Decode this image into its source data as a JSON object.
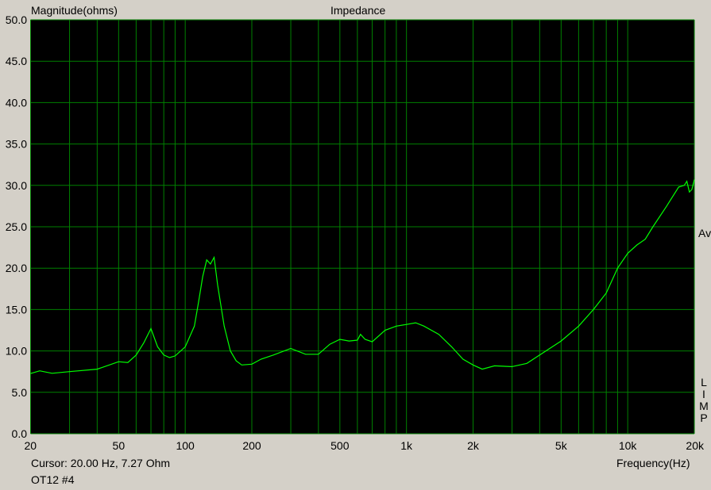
{
  "chart_data": {
    "type": "line",
    "title": "Impedance",
    "ylabel": "Magnitude(ohms)",
    "xlabel": "Frequency(Hz)",
    "xscale": "log",
    "xlim": [
      20,
      20000
    ],
    "ylim": [
      0,
      50
    ],
    "grid": true,
    "x_ticks": [
      {
        "v": 20,
        "label": "20"
      },
      {
        "v": 50,
        "label": "50"
      },
      {
        "v": 100,
        "label": "100"
      },
      {
        "v": 200,
        "label": "200"
      },
      {
        "v": 500,
        "label": "500"
      },
      {
        "v": 1000,
        "label": "1k"
      },
      {
        "v": 2000,
        "label": "2k"
      },
      {
        "v": 5000,
        "label": "5k"
      },
      {
        "v": 10000,
        "label": "10k"
      },
      {
        "v": 20000,
        "label": "20k"
      }
    ],
    "y_ticks": [
      {
        "v": 0,
        "label": "0.0"
      },
      {
        "v": 5,
        "label": "5.0"
      },
      {
        "v": 10,
        "label": "10.0"
      },
      {
        "v": 15,
        "label": "15.0"
      },
      {
        "v": 20,
        "label": "20.0"
      },
      {
        "v": 25,
        "label": "25.0"
      },
      {
        "v": 30,
        "label": "30.0"
      },
      {
        "v": 35,
        "label": "35.0"
      },
      {
        "v": 40,
        "label": "40.0"
      },
      {
        "v": 45,
        "label": "45.0"
      },
      {
        "v": 50,
        "label": "50.0"
      }
    ],
    "series": [
      {
        "color": "#00ff00",
        "x": [
          20,
          22,
          25,
          30,
          40,
          50,
          55,
          60,
          65,
          70,
          75,
          80,
          85,
          90,
          100,
          110,
          115,
          120,
          125,
          130,
          135,
          140,
          150,
          160,
          170,
          180,
          200,
          220,
          250,
          300,
          350,
          400,
          450,
          500,
          550,
          600,
          620,
          650,
          700,
          800,
          900,
          1000,
          1100,
          1200,
          1400,
          1600,
          1800,
          2000,
          2200,
          2500,
          3000,
          3500,
          4000,
          5000,
          6000,
          7000,
          8000,
          9000,
          10000,
          11000,
          12000,
          13000,
          15000,
          17000,
          18000,
          18500,
          19000,
          19500,
          20000
        ],
        "y": [
          7.27,
          7.6,
          7.3,
          7.5,
          7.8,
          8.7,
          8.6,
          9.5,
          11,
          12.7,
          10.5,
          9.5,
          9.2,
          9.4,
          10.5,
          13,
          16,
          19,
          21,
          20.5,
          21.3,
          18,
          13,
          10,
          8.8,
          8.3,
          8.4,
          9,
          9.5,
          10.3,
          9.6,
          9.6,
          10.8,
          11.4,
          11.2,
          11.3,
          12,
          11.4,
          11.1,
          12.5,
          13,
          13.2,
          13.4,
          13,
          12,
          10.5,
          9,
          8.3,
          7.8,
          8.2,
          8.1,
          8.5,
          9.5,
          11.2,
          13,
          15,
          17,
          20,
          21.8,
          22.8,
          23.5,
          25,
          27.5,
          29.8,
          30,
          30.5,
          29.2,
          29.5,
          30.7
        ]
      }
    ],
    "grid_color": "#008000",
    "background": "#000000"
  },
  "cursor_text": "Cursor: 20.00 Hz, 7.27 Ohm",
  "trace_name": "OT12 #4",
  "right_label_av": "Av",
  "right_label_app": [
    "L",
    "I",
    "M",
    "P"
  ]
}
